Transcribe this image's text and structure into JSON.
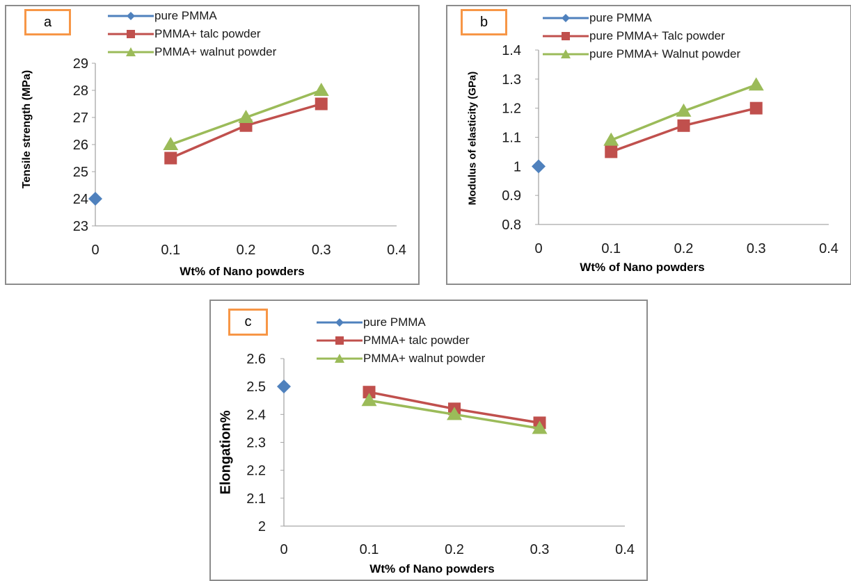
{
  "panels": [
    {
      "tag": "a"
    },
    {
      "tag": "b"
    },
    {
      "tag": "c"
    }
  ],
  "colors": {
    "pure_pmma": "#4f81bd",
    "talc": "#c0504d",
    "walnut": "#9bbb59",
    "tag_border": "#f79646",
    "frame": "#8c8c8c",
    "axis": "#a6a6a6"
  },
  "chart_data": [
    {
      "type": "line",
      "title": "",
      "xlabel": "Wt% of Nano powders",
      "ylabel": "Tensile strength (MPa)",
      "xlim": [
        0,
        0.4
      ],
      "ylim": [
        23,
        29
      ],
      "xticks": [
        "0",
        "0.1",
        "0.2",
        "0.3",
        "0.4"
      ],
      "yticks": [
        "23",
        "24",
        "25",
        "26",
        "27",
        "28",
        "29"
      ],
      "grid": false,
      "legend_position": "top",
      "series": [
        {
          "name": "pure PMMA",
          "marker": "diamond",
          "x": [
            0
          ],
          "y": [
            24
          ]
        },
        {
          "name": "PMMA+ talc powder",
          "marker": "square",
          "x": [
            0.1,
            0.2,
            0.3
          ],
          "y": [
            25.5,
            26.7,
            27.5
          ]
        },
        {
          "name": "PMMA+ walnut powder",
          "marker": "triangle",
          "x": [
            0.1,
            0.2,
            0.3
          ],
          "y": [
            26,
            27,
            28
          ]
        }
      ]
    },
    {
      "type": "line",
      "title": "",
      "xlabel": "Wt% of Nano powders",
      "ylabel": "Modulus of elasticity (GPa)",
      "xlim": [
        0,
        0.4
      ],
      "ylim": [
        0.8,
        1.4
      ],
      "xticks": [
        "0",
        "0.1",
        "0.2",
        "0.3",
        "0.4"
      ],
      "yticks": [
        "0.8",
        "0.9",
        "1",
        "1.1",
        "1.2",
        "1.3",
        "1.4"
      ],
      "grid": false,
      "legend_position": "top",
      "series": [
        {
          "name": "pure PMMA",
          "marker": "diamond",
          "x": [
            0
          ],
          "y": [
            1.0
          ]
        },
        {
          "name": "pure PMMA+ Talc powder",
          "marker": "square",
          "x": [
            0.1,
            0.2,
            0.3
          ],
          "y": [
            1.05,
            1.14,
            1.2
          ]
        },
        {
          "name": "pure PMMA+ Walnut powder",
          "marker": "triangle",
          "x": [
            0.1,
            0.2,
            0.3
          ],
          "y": [
            1.09,
            1.19,
            1.28
          ]
        }
      ]
    },
    {
      "type": "line",
      "title": "",
      "xlabel": "Wt% of Nano powders",
      "ylabel": "Elongation%",
      "xlim": [
        0,
        0.4
      ],
      "ylim": [
        2,
        2.6
      ],
      "xticks": [
        "0",
        "0.1",
        "0.2",
        "0.3",
        "0.4"
      ],
      "yticks": [
        "2",
        "2.1",
        "2.2",
        "2.3",
        "2.4",
        "2.5",
        "2.6"
      ],
      "grid": false,
      "legend_position": "top",
      "series": [
        {
          "name": "pure PMMA",
          "marker": "diamond",
          "x": [
            0
          ],
          "y": [
            2.5
          ]
        },
        {
          "name": "PMMA+ talc powder",
          "marker": "square",
          "x": [
            0.1,
            0.2,
            0.3
          ],
          "y": [
            2.48,
            2.42,
            2.37
          ]
        },
        {
          "name": "PMMA+ walnut powder",
          "marker": "triangle",
          "x": [
            0.1,
            0.2,
            0.3
          ],
          "y": [
            2.45,
            2.4,
            2.35
          ]
        }
      ]
    }
  ]
}
